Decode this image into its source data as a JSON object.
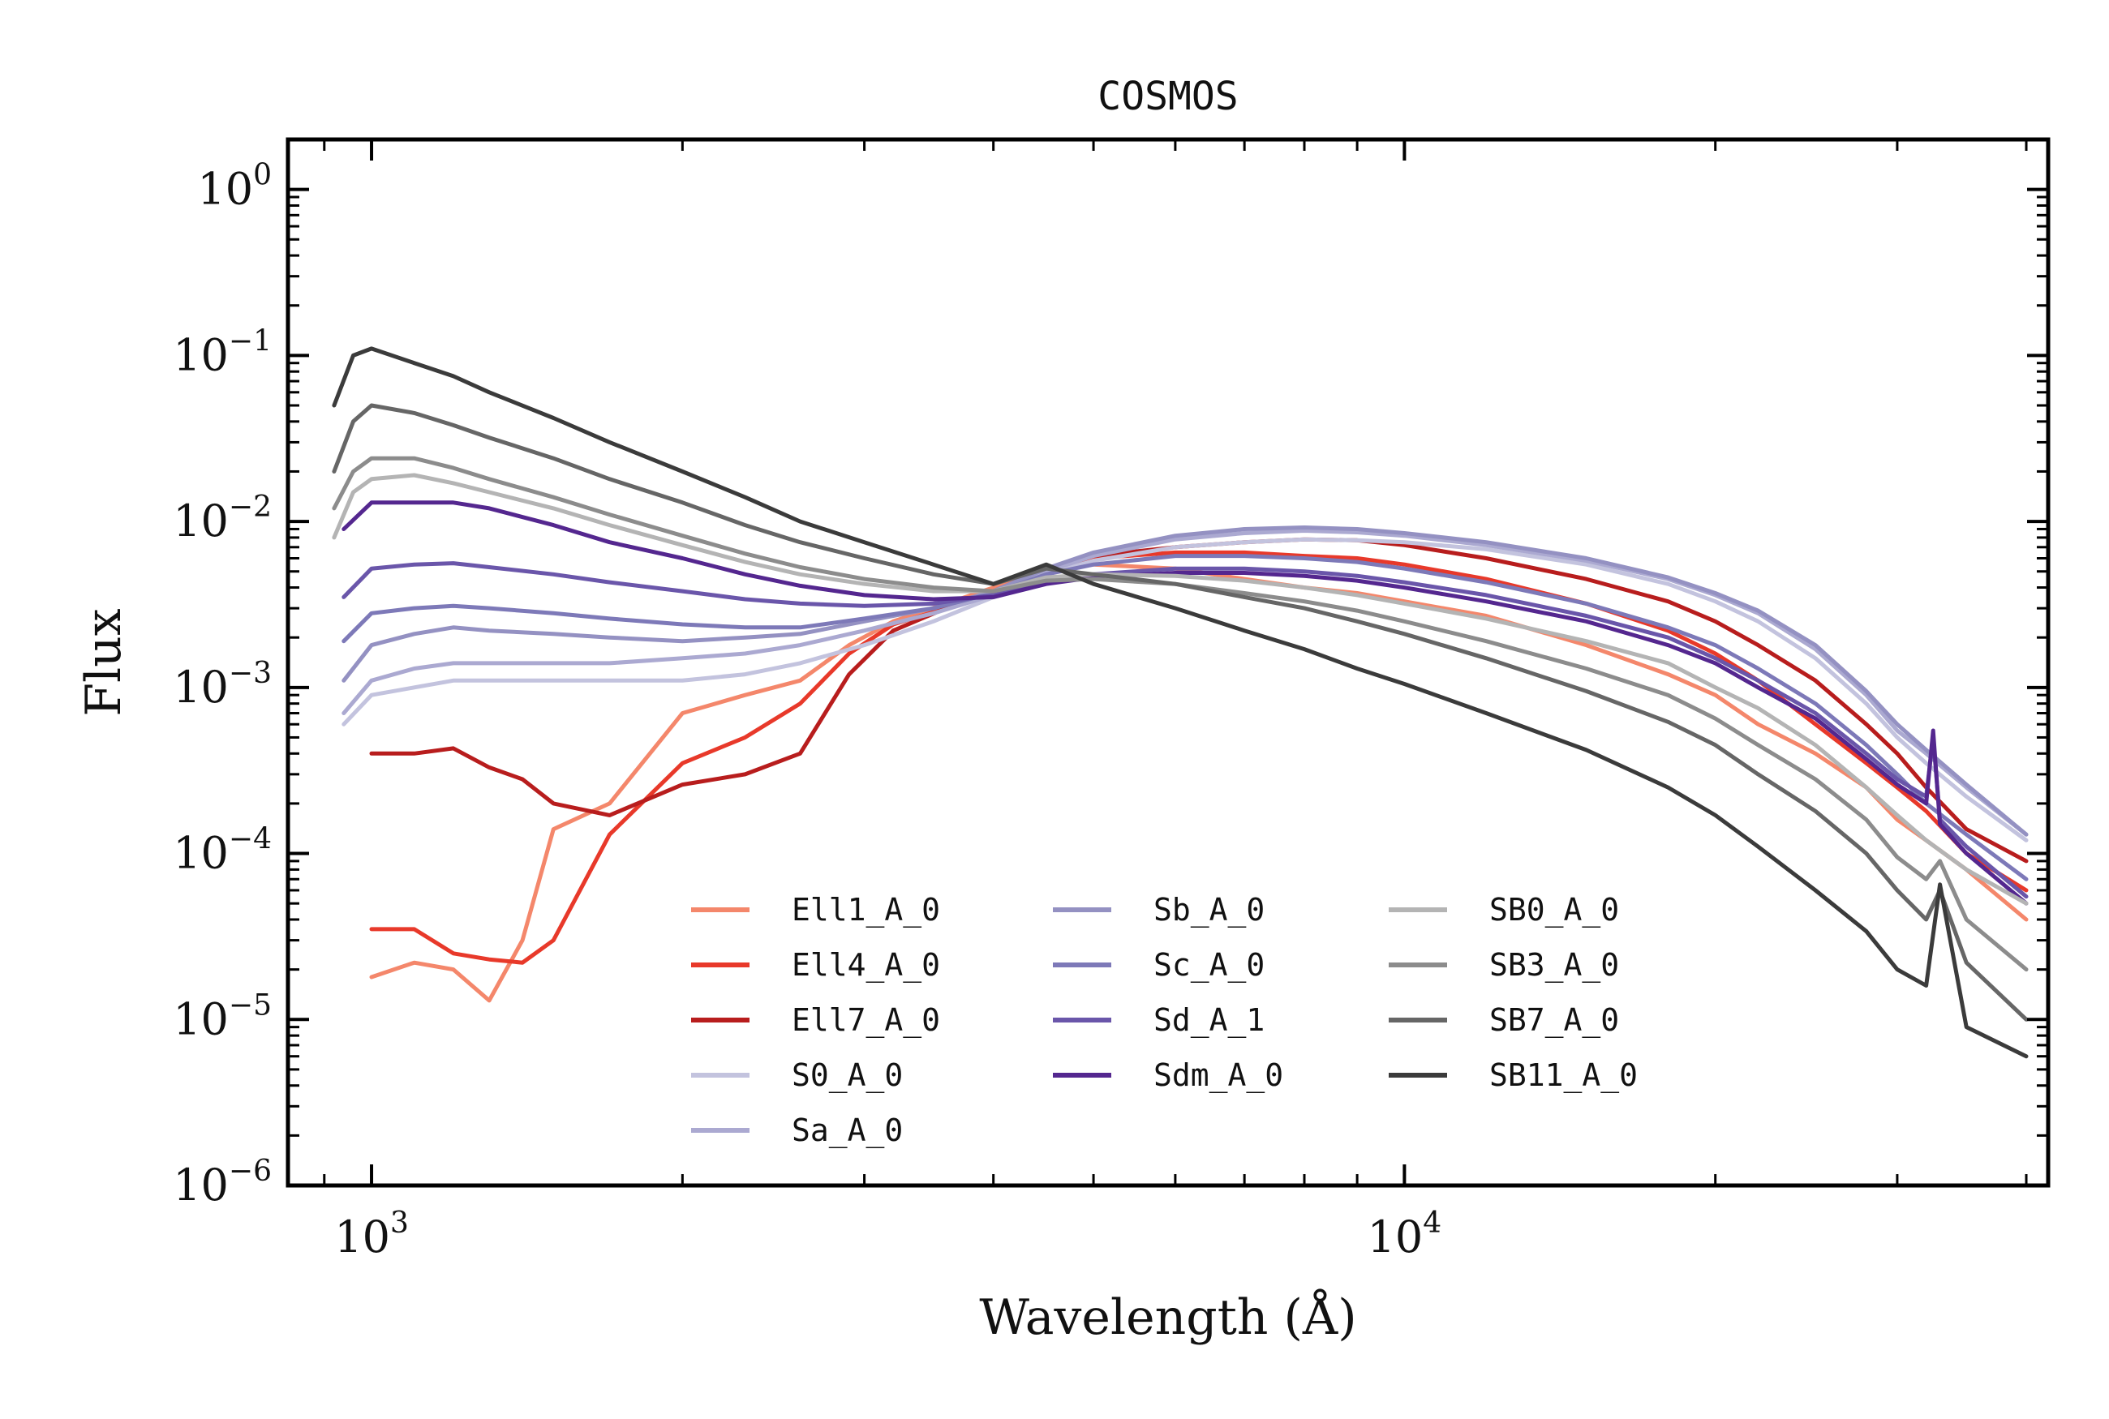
{
  "chart_data": {
    "type": "line",
    "title": "COSMOS",
    "xlabel": "Wavelength (Å)",
    "ylabel": "Flux",
    "xscale": "log",
    "yscale": "log",
    "xlim": [
      830,
      42000
    ],
    "ylim": [
      1e-06,
      2
    ],
    "x_ticks": [
      {
        "value": 1000,
        "base": "10",
        "exp": "3"
      },
      {
        "value": 10000,
        "base": "10",
        "exp": "4"
      }
    ],
    "y_ticks": [
      {
        "value": 1,
        "base": "10",
        "exp": "0"
      },
      {
        "value": 0.1,
        "base": "10",
        "exp": "−1"
      },
      {
        "value": 0.01,
        "base": "10",
        "exp": "−2"
      },
      {
        "value": 0.001,
        "base": "10",
        "exp": "−3"
      },
      {
        "value": 0.0001,
        "base": "10",
        "exp": "−4"
      },
      {
        "value": 1e-05,
        "base": "10",
        "exp": "−5"
      },
      {
        "value": 1e-06,
        "base": "10",
        "exp": "−6"
      }
    ],
    "legend_position": "lower-center, 3 columns",
    "grid": false,
    "series": [
      {
        "name": "Ell1_A_0",
        "color": "#f4876b",
        "x": [
          1000,
          1100,
          1200,
          1300,
          1400,
          1500,
          1700,
          2000,
          2300,
          2600,
          2900,
          3200,
          3600,
          4000,
          4500,
          5000,
          6000,
          7000,
          8000,
          9000,
          10000,
          12000,
          15000,
          18000,
          20000,
          22000,
          25000,
          28000,
          30000,
          32000,
          35000,
          40000
        ],
        "y": [
          1.8e-05,
          2.2e-05,
          2e-05,
          1.3e-05,
          3e-05,
          0.00014,
          0.0002,
          0.0007,
          0.0009,
          0.0011,
          0.0018,
          0.0025,
          0.0032,
          0.004,
          0.005,
          0.0055,
          0.0052,
          0.0045,
          0.004,
          0.0037,
          0.0033,
          0.0027,
          0.0018,
          0.0012,
          0.0009,
          0.0006,
          0.0004,
          0.00025,
          0.00016,
          0.00012,
          8e-05,
          4e-05
        ]
      },
      {
        "name": "Ell4_A_0",
        "color": "#e8392a",
        "x": [
          1000,
          1100,
          1200,
          1300,
          1400,
          1500,
          1700,
          2000,
          2300,
          2600,
          2900,
          3200,
          3600,
          4000,
          4500,
          5000,
          6000,
          7000,
          8000,
          9000,
          10000,
          12000,
          15000,
          18000,
          20000,
          22000,
          25000,
          28000,
          30000,
          32000,
          35000,
          40000
        ],
        "y": [
          3.5e-05,
          3.5e-05,
          2.5e-05,
          2.3e-05,
          2.2e-05,
          3e-05,
          0.00013,
          0.00035,
          0.0005,
          0.0008,
          0.0016,
          0.0024,
          0.003,
          0.0038,
          0.0052,
          0.006,
          0.0065,
          0.0065,
          0.0062,
          0.006,
          0.0055,
          0.0045,
          0.0032,
          0.0022,
          0.0016,
          0.0011,
          0.0006,
          0.00035,
          0.00025,
          0.00018,
          0.0001,
          6e-05
        ]
      },
      {
        "name": "Ell7_A_0",
        "color": "#b81d1d",
        "x": [
          1000,
          1100,
          1200,
          1300,
          1400,
          1500,
          1700,
          2000,
          2300,
          2600,
          2900,
          3200,
          3600,
          4000,
          4500,
          5000,
          6000,
          7000,
          8000,
          9000,
          10000,
          12000,
          15000,
          18000,
          20000,
          22000,
          25000,
          28000,
          30000,
          32000,
          35000,
          40000
        ],
        "y": [
          0.0004,
          0.0004,
          0.00043,
          0.00033,
          0.00028,
          0.0002,
          0.00017,
          0.00026,
          0.0003,
          0.0004,
          0.0012,
          0.0022,
          0.003,
          0.0037,
          0.005,
          0.0062,
          0.007,
          0.0075,
          0.0078,
          0.0077,
          0.0072,
          0.006,
          0.0045,
          0.0033,
          0.0025,
          0.0018,
          0.0011,
          0.0006,
          0.0004,
          0.00025,
          0.00014,
          9e-05
        ]
      },
      {
        "name": "S0_A_0",
        "color": "#c3c3de",
        "x": [
          940,
          1000,
          1100,
          1200,
          1300,
          1500,
          1700,
          2000,
          2300,
          2600,
          3000,
          3500,
          4000,
          4500,
          5000,
          6000,
          7000,
          8000,
          9000,
          10000,
          12000,
          15000,
          18000,
          20000,
          22000,
          25000,
          28000,
          30000,
          32000,
          35000,
          40000
        ],
        "y": [
          0.0006,
          0.0009,
          0.001,
          0.0011,
          0.0011,
          0.0011,
          0.0011,
          0.0011,
          0.0012,
          0.0014,
          0.0018,
          0.0025,
          0.0035,
          0.0048,
          0.0058,
          0.007,
          0.0075,
          0.0078,
          0.0077,
          0.0075,
          0.0068,
          0.0055,
          0.0042,
          0.0033,
          0.0025,
          0.0015,
          0.0008,
          0.0005,
          0.00035,
          0.00022,
          0.00012
        ]
      },
      {
        "name": "Sa_A_0",
        "color": "#aba9d1",
        "x": [
          940,
          1000,
          1100,
          1200,
          1300,
          1500,
          1700,
          2000,
          2300,
          2600,
          3000,
          3500,
          4000,
          4500,
          5000,
          6000,
          7000,
          8000,
          9000,
          10000,
          12000,
          15000,
          18000,
          20000,
          22000,
          25000,
          28000,
          30000,
          32000,
          35000,
          40000
        ],
        "y": [
          0.0007,
          0.0011,
          0.0013,
          0.0014,
          0.0014,
          0.0014,
          0.0014,
          0.0015,
          0.0016,
          0.0018,
          0.0022,
          0.0028,
          0.0036,
          0.005,
          0.0062,
          0.0078,
          0.0085,
          0.0088,
          0.0086,
          0.0082,
          0.0072,
          0.0058,
          0.0045,
          0.0036,
          0.0028,
          0.0017,
          0.0009,
          0.00055,
          0.0004,
          0.00025,
          0.00013
        ]
      },
      {
        "name": "Sb_A_0",
        "color": "#9491c2",
        "x": [
          940,
          1000,
          1100,
          1200,
          1300,
          1500,
          1700,
          2000,
          2300,
          2600,
          3000,
          3500,
          4000,
          4500,
          5000,
          6000,
          7000,
          8000,
          9000,
          10000,
          12000,
          15000,
          18000,
          20000,
          22000,
          25000,
          28000,
          30000,
          32000,
          35000,
          40000
        ],
        "y": [
          0.0011,
          0.0018,
          0.0021,
          0.0023,
          0.0022,
          0.0021,
          0.002,
          0.0019,
          0.002,
          0.0021,
          0.0025,
          0.003,
          0.0038,
          0.0052,
          0.0065,
          0.0082,
          0.009,
          0.0092,
          0.009,
          0.0085,
          0.0075,
          0.006,
          0.0046,
          0.0037,
          0.0029,
          0.0018,
          0.00095,
          0.0006,
          0.00042,
          0.00026,
          0.00013
        ]
      },
      {
        "name": "Sc_A_0",
        "color": "#7d79b8",
        "x": [
          940,
          1000,
          1100,
          1200,
          1300,
          1500,
          1700,
          2000,
          2300,
          2600,
          3000,
          3500,
          4000,
          4500,
          5000,
          6000,
          7000,
          8000,
          9000,
          10000,
          12000,
          15000,
          18000,
          20000,
          22000,
          25000,
          28000,
          30000,
          32000,
          35000,
          40000
        ],
        "y": [
          0.0019,
          0.0028,
          0.003,
          0.0031,
          0.003,
          0.0028,
          0.0026,
          0.0024,
          0.0023,
          0.0023,
          0.0026,
          0.003,
          0.0037,
          0.0048,
          0.0055,
          0.0062,
          0.0062,
          0.006,
          0.0057,
          0.0052,
          0.0043,
          0.0032,
          0.0023,
          0.0018,
          0.0013,
          0.0008,
          0.00045,
          0.0003,
          0.0002,
          0.00013,
          7e-05
        ]
      },
      {
        "name": "Sd_A_1",
        "color": "#6a56aa",
        "x": [
          940,
          1000,
          1100,
          1200,
          1300,
          1500,
          1700,
          2000,
          2300,
          2600,
          3000,
          3500,
          4000,
          4500,
          5000,
          6000,
          7000,
          8000,
          9000,
          10000,
          12000,
          15000,
          18000,
          20000,
          22000,
          25000,
          28000,
          30000,
          32000,
          32500,
          33000,
          35000,
          40000
        ],
        "y": [
          0.0035,
          0.0052,
          0.0055,
          0.0056,
          0.0053,
          0.0048,
          0.0043,
          0.0038,
          0.0034,
          0.0032,
          0.0031,
          0.0032,
          0.0036,
          0.0044,
          0.0048,
          0.0052,
          0.0052,
          0.005,
          0.0047,
          0.0043,
          0.0036,
          0.0027,
          0.002,
          0.0015,
          0.0011,
          0.0007,
          0.0004,
          0.00028,
          0.00022,
          0.0005,
          0.00016,
          0.00011,
          5.5e-05
        ]
      },
      {
        "name": "Sdm_A_0",
        "color": "#54278f",
        "x": [
          940,
          1000,
          1100,
          1200,
          1300,
          1500,
          1700,
          2000,
          2300,
          2600,
          3000,
          3500,
          4000,
          4500,
          5000,
          6000,
          7000,
          8000,
          9000,
          10000,
          12000,
          15000,
          18000,
          20000,
          22000,
          25000,
          28000,
          30000,
          32000,
          32500,
          33000,
          35000,
          40000
        ],
        "y": [
          0.009,
          0.013,
          0.013,
          0.013,
          0.012,
          0.0095,
          0.0075,
          0.006,
          0.0048,
          0.0041,
          0.0036,
          0.0034,
          0.0035,
          0.0042,
          0.0046,
          0.0049,
          0.0049,
          0.0047,
          0.0044,
          0.004,
          0.0033,
          0.0025,
          0.0018,
          0.0014,
          0.001,
          0.00065,
          0.00037,
          0.00026,
          0.0002,
          0.00055,
          0.00015,
          0.0001,
          5e-05
        ]
      },
      {
        "name": "SB0_A_0",
        "color": "#b4b4b4",
        "x": [
          920,
          960,
          1000,
          1100,
          1200,
          1300,
          1500,
          1700,
          2000,
          2300,
          2600,
          3000,
          3500,
          4000,
          4500,
          5000,
          6000,
          7000,
          8000,
          9000,
          10000,
          12000,
          15000,
          18000,
          20000,
          22000,
          25000,
          28000,
          30000,
          32000,
          35000,
          40000
        ],
        "y": [
          0.008,
          0.015,
          0.018,
          0.019,
          0.017,
          0.015,
          0.012,
          0.0095,
          0.0072,
          0.0057,
          0.0048,
          0.0042,
          0.0038,
          0.0038,
          0.0046,
          0.0048,
          0.0047,
          0.0044,
          0.004,
          0.0036,
          0.0032,
          0.0026,
          0.0019,
          0.0014,
          0.001,
          0.00075,
          0.00045,
          0.00025,
          0.00017,
          0.00012,
          8e-05,
          5e-05
        ]
      },
      {
        "name": "SB3_A_0",
        "color": "#8c8c8c",
        "x": [
          920,
          960,
          1000,
          1100,
          1200,
          1300,
          1500,
          1700,
          2000,
          2300,
          2600,
          3000,
          3500,
          4000,
          4500,
          5000,
          6000,
          7000,
          8000,
          9000,
          10000,
          12000,
          15000,
          18000,
          20000,
          22000,
          25000,
          28000,
          30000,
          32000,
          33000,
          35000,
          40000
        ],
        "y": [
          0.012,
          0.02,
          0.024,
          0.024,
          0.021,
          0.018,
          0.014,
          0.011,
          0.0082,
          0.0064,
          0.0053,
          0.0045,
          0.004,
          0.0038,
          0.0044,
          0.0045,
          0.0042,
          0.0037,
          0.0033,
          0.0029,
          0.0025,
          0.0019,
          0.0013,
          0.0009,
          0.00065,
          0.00045,
          0.00028,
          0.00016,
          9.5e-05,
          7e-05,
          9e-05,
          4e-05,
          2e-05
        ]
      },
      {
        "name": "SB7_A_0",
        "color": "#666666",
        "x": [
          920,
          960,
          1000,
          1100,
          1200,
          1300,
          1500,
          1700,
          2000,
          2300,
          2600,
          3000,
          3500,
          4000,
          4500,
          5000,
          6000,
          7000,
          8000,
          9000,
          10000,
          12000,
          15000,
          18000,
          20000,
          22000,
          25000,
          28000,
          30000,
          32000,
          33000,
          35000,
          40000
        ],
        "y": [
          0.02,
          0.04,
          0.05,
          0.045,
          0.038,
          0.032,
          0.024,
          0.018,
          0.013,
          0.0095,
          0.0075,
          0.006,
          0.0048,
          0.0042,
          0.0052,
          0.0048,
          0.0042,
          0.0035,
          0.003,
          0.0025,
          0.0021,
          0.0015,
          0.00095,
          0.00062,
          0.00045,
          0.0003,
          0.00018,
          0.0001,
          6e-05,
          4e-05,
          6e-05,
          2.2e-05,
          1e-05
        ]
      },
      {
        "name": "SB11_A_0",
        "color": "#3b3b3b",
        "x": [
          920,
          960,
          1000,
          1100,
          1200,
          1300,
          1500,
          1700,
          2000,
          2300,
          2600,
          3000,
          3500,
          4000,
          4500,
          5000,
          6000,
          7000,
          8000,
          9000,
          10000,
          12000,
          15000,
          18000,
          20000,
          22000,
          25000,
          28000,
          30000,
          32000,
          33000,
          35000,
          40000
        ],
        "y": [
          0.05,
          0.1,
          0.11,
          0.09,
          0.075,
          0.06,
          0.042,
          0.03,
          0.02,
          0.014,
          0.01,
          0.0075,
          0.0055,
          0.0042,
          0.0055,
          0.0042,
          0.003,
          0.0022,
          0.0017,
          0.0013,
          0.00105,
          0.0007,
          0.00042,
          0.00025,
          0.00017,
          0.00011,
          6e-05,
          3.4e-05,
          2e-05,
          1.6e-05,
          6.5e-05,
          9e-06,
          6e-06
        ]
      }
    ]
  }
}
